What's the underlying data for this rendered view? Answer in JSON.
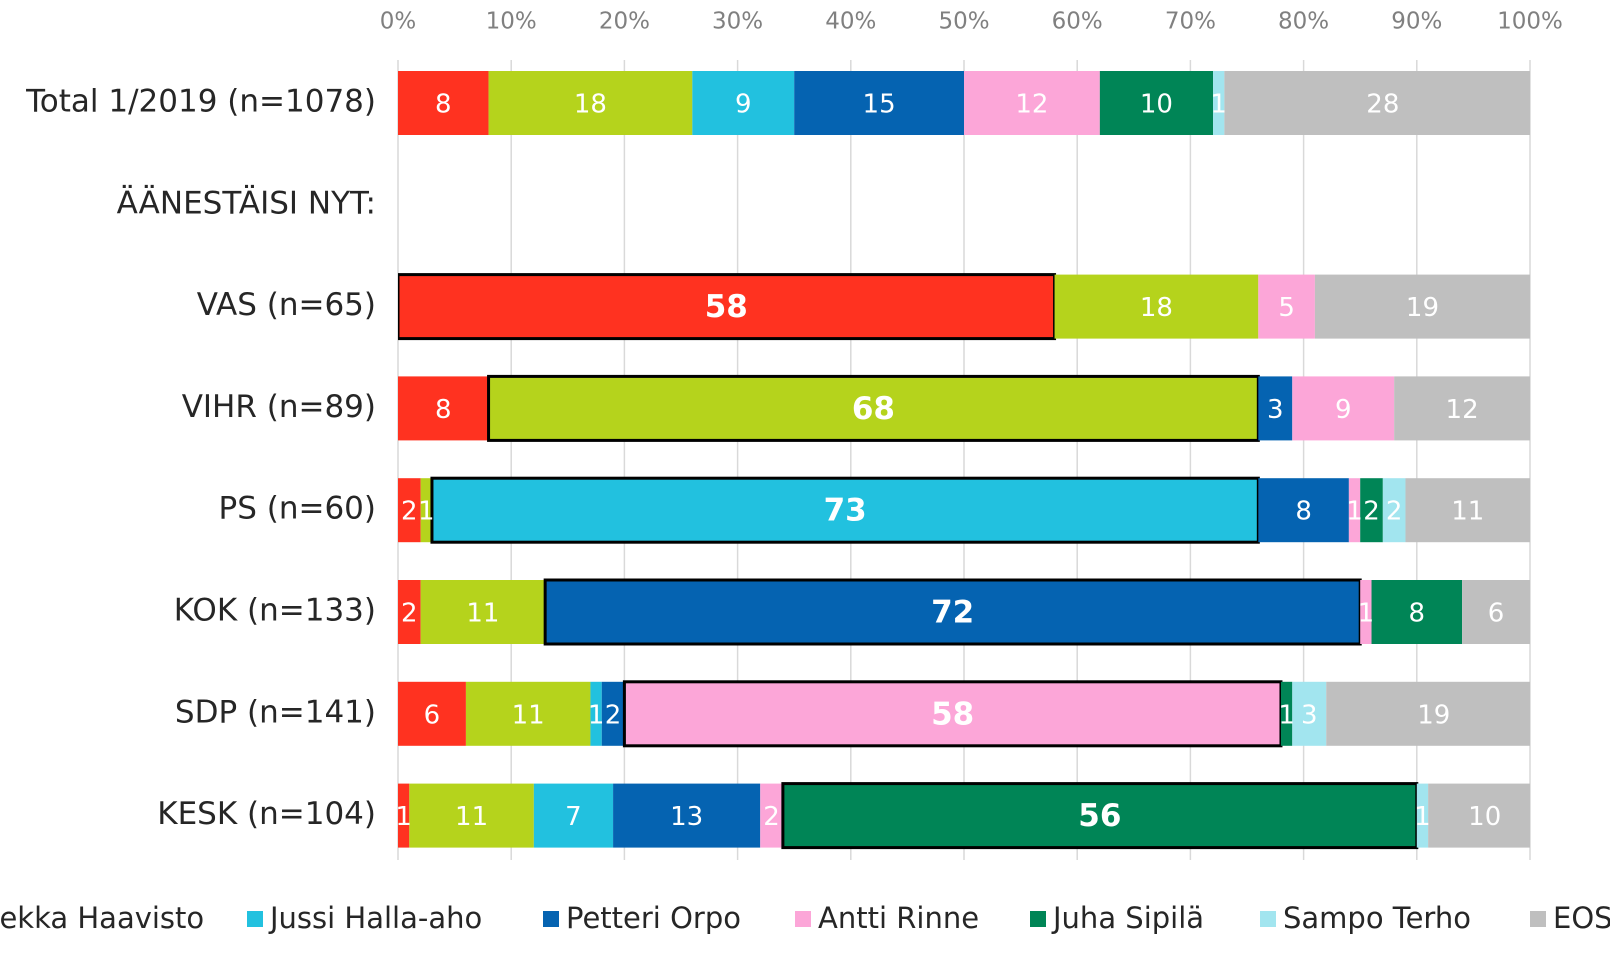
{
  "chart_data": {
    "type": "stacked-bar-horizontal",
    "categories": [
      "Total 1/2019 (n=1078)",
      "ÄÄNESTÄISI NYT:",
      "VAS (n=65)",
      "VIHR (n=89)",
      "PS (n=60)",
      "KOK (n=133)",
      "SDP (n=141)",
      "KESK (n=104)"
    ],
    "series": [
      {
        "name": null,
        "color": "#ff3220",
        "values": [
          8,
          null,
          58,
          8,
          2,
          2,
          6,
          1
        ]
      },
      {
        "name": "Pekka Haavisto",
        "color": "#b5d31c",
        "values": [
          18,
          null,
          18,
          68,
          1,
          11,
          11,
          11
        ]
      },
      {
        "name": "Jussi Halla-aho",
        "color": "#22c1df",
        "values": [
          9,
          null,
          null,
          null,
          73,
          null,
          1,
          7
        ]
      },
      {
        "name": "Petteri Orpo",
        "color": "#0563b1",
        "values": [
          15,
          null,
          null,
          3,
          8,
          72,
          2,
          13
        ]
      },
      {
        "name": "Antti Rinne",
        "color": "#fca6d8",
        "values": [
          12,
          null,
          5,
          9,
          1,
          1,
          58,
          2
        ]
      },
      {
        "name": "Juha Sipilä",
        "color": "#008556",
        "values": [
          10,
          null,
          null,
          null,
          2,
          8,
          1,
          56
        ]
      },
      {
        "name": "Sampo Terho",
        "color": "#a2e5ef",
        "values": [
          1,
          null,
          null,
          null,
          2,
          null,
          3,
          1
        ]
      },
      {
        "name": "EOS",
        "color": "#bfbfbf",
        "values": [
          28,
          null,
          19,
          12,
          11,
          6,
          19,
          10
        ]
      }
    ],
    "highlight": [
      null,
      null,
      0,
      1,
      2,
      3,
      4,
      5
    ],
    "xlim": [
      0,
      100
    ],
    "xticks": [
      {
        "value": 0,
        "label": "0%"
      },
      {
        "value": 10,
        "label": "10%"
      },
      {
        "value": 20,
        "label": "20%"
      },
      {
        "value": 30,
        "label": "30%"
      },
      {
        "value": 40,
        "label": "40%"
      },
      {
        "value": 50,
        "label": "50%"
      },
      {
        "value": 60,
        "label": "60%"
      },
      {
        "value": 70,
        "label": "70%"
      },
      {
        "value": 80,
        "label": "80%"
      },
      {
        "value": 90,
        "label": "90%"
      },
      {
        "value": 100,
        "label": "100%"
      }
    ],
    "grid": true,
    "legend": "bottom"
  }
}
